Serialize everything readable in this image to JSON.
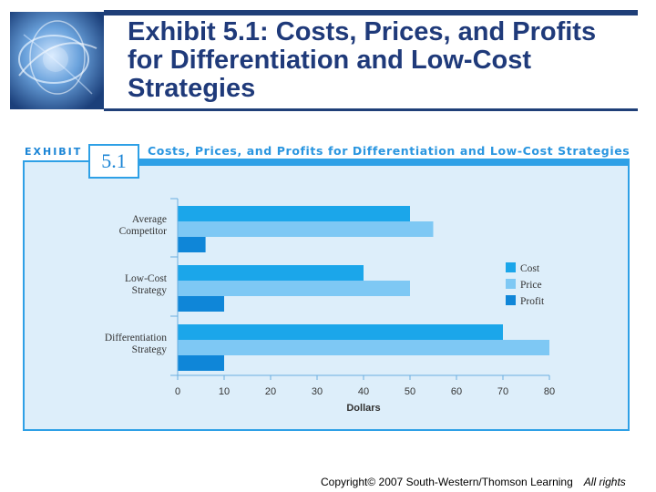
{
  "slide": {
    "title": "Exhibit 5.1: Costs, Prices, and Profits for Differentiation and Low-Cost Strategies",
    "copyright": "Copyright© 2007 South-Western/Thomson Learning",
    "rights": "All rights"
  },
  "exhibit": {
    "label": "EXHIBIT",
    "number": "5.1",
    "title": "Costs, Prices, and Profits for Differentiation and Low-Cost Strategies"
  },
  "colors": {
    "cost": "#1ba6ea",
    "price": "#7ec8f4",
    "profit": "#0f86d8"
  },
  "chart_data": {
    "type": "bar",
    "orientation": "horizontal",
    "title": "Costs, Prices, and Profits for Differentiation and Low-Cost Strategies",
    "categories": [
      [
        "Average",
        "Competitor"
      ],
      [
        "Low-Cost",
        "Strategy"
      ],
      [
        "Differentiation",
        "Strategy"
      ]
    ],
    "series": [
      {
        "name": "Cost",
        "values": [
          50,
          40,
          70
        ]
      },
      {
        "name": "Price",
        "values": [
          55,
          50,
          80
        ]
      },
      {
        "name": "Profit",
        "values": [
          6,
          10,
          10
        ]
      }
    ],
    "xlabel": "Dollars",
    "ylabel": "",
    "xlim": [
      0,
      80
    ],
    "xticks": [
      0,
      10,
      20,
      30,
      40,
      50,
      60,
      70,
      80
    ],
    "legend": "right"
  }
}
